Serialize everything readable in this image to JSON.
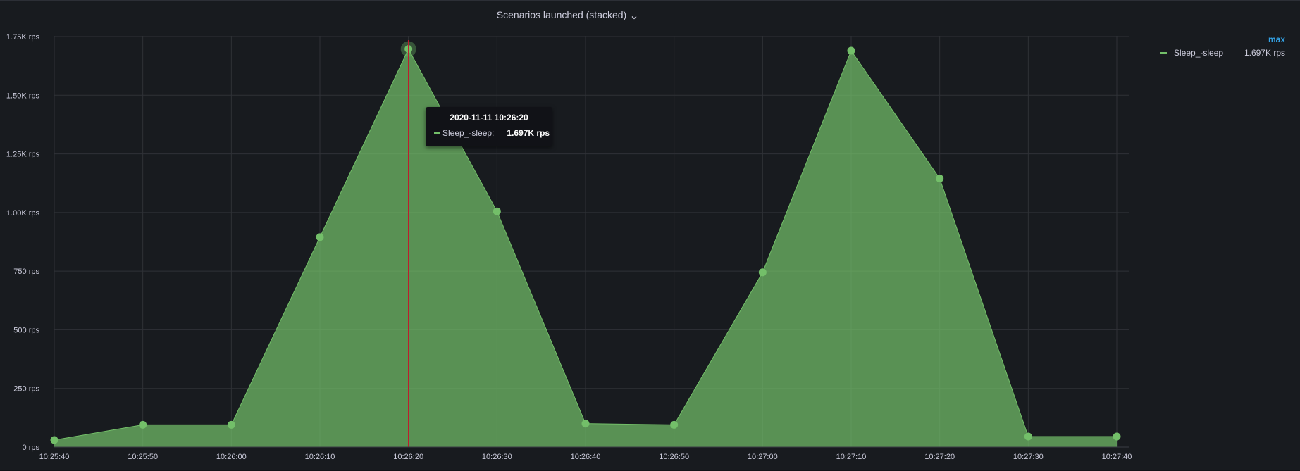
{
  "panel": {
    "title": "Scenarios launched (stacked)",
    "chevron_icon": "chevron-down-icon"
  },
  "legend": {
    "header": "max",
    "items": [
      {
        "name": "Sleep_-sleep",
        "value": "1.697K rps",
        "color": "#73bf69"
      }
    ]
  },
  "tooltip": {
    "time": "2020-11-11 10:26:20",
    "series_label": "Sleep_-sleep:",
    "value": "1.697K rps"
  },
  "chart_data": {
    "type": "area",
    "title": "Scenarios launched (stacked)",
    "xlabel": "",
    "ylabel": "",
    "stacked": true,
    "grid": true,
    "legend_position": "right",
    "x_ticks": [
      "10:25:40",
      "10:25:50",
      "10:26:00",
      "10:26:10",
      "10:26:20",
      "10:26:30",
      "10:26:40",
      "10:26:50",
      "10:27:00",
      "10:27:10",
      "10:27:20",
      "10:27:30",
      "10:27:40"
    ],
    "y_ticks": [
      "0 rps",
      "250 rps",
      "500 rps",
      "750 rps",
      "1.00K rps",
      "1.25K rps",
      "1.50K rps",
      "1.75K rps"
    ],
    "y_tick_values": [
      0,
      250,
      500,
      750,
      1000,
      1250,
      1500,
      1750
    ],
    "ylim": [
      0,
      1750
    ],
    "hover_time": "10:26:20",
    "series": [
      {
        "name": "Sleep_-sleep",
        "color": "#73bf69",
        "x": [
          "10:25:40",
          "10:25:50",
          "10:26:00",
          "10:26:10",
          "10:26:20",
          "10:26:30",
          "10:26:40",
          "10:26:50",
          "10:27:00",
          "10:27:10",
          "10:27:20",
          "10:27:30",
          "10:27:40"
        ],
        "values": [
          30,
          95,
          95,
          895,
          1697,
          1005,
          100,
          95,
          745,
          1690,
          1145,
          45,
          45
        ]
      }
    ]
  }
}
